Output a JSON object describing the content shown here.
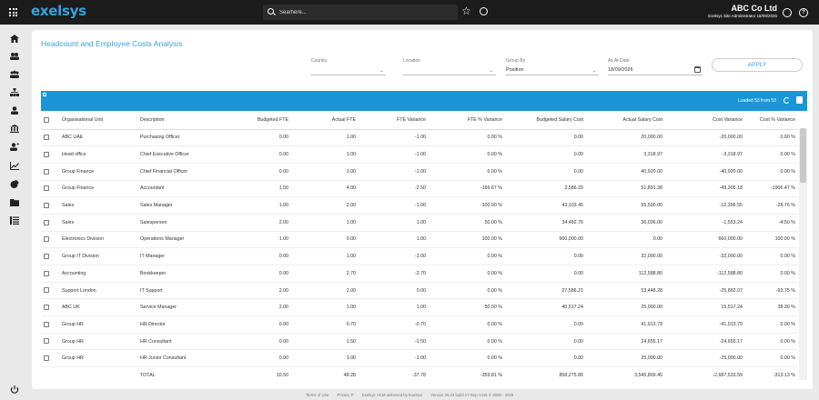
{
  "app": {
    "logo_text": "exelsys",
    "search_placeholder": "Searhere...",
    "company_name": "ABC Co Ltd",
    "user_role": "Exelsys Site Administrator 18/09/2026"
  },
  "page": {
    "title": "Headcount and Employee Costs Analysis"
  },
  "filters": {
    "country_label": "Country",
    "country_value": "",
    "location_label": "Location",
    "location_value": "",
    "group_by_label": "Group By",
    "group_by_value": "Position",
    "as_at_label": "As At Date",
    "as_at_value": "18/09/2026",
    "apply_label": "APPLY"
  },
  "grid": {
    "loaded_text": "Loaded 53 from 53",
    "columns": [
      "Organisational Unit",
      "Description",
      "Budgeted FTE",
      "Actual FTE",
      "FTE Variance",
      "FTE % Variance",
      "Budgeted Salary Cost",
      "Actual Salary Cost",
      "Cost Variance",
      "Cost % Variance"
    ],
    "rows": [
      [
        "ABC UAE",
        "Purchasing Officer",
        "0.00",
        "1.00",
        "-1.00",
        "0.00 %",
        "0.00",
        "20,000.00",
        "-20,000.00",
        "0.00 %"
      ],
      [
        "Head office",
        "Chief Executive Officer",
        "0.00",
        "1.00",
        "-1.00",
        "0.00 %",
        "0.00",
        "3,318.97",
        "-3,318.97",
        "0.00 %"
      ],
      [
        "Group Finance",
        "Chief Financial Officer",
        "0.00",
        "1.00",
        "-1.00",
        "0.00 %",
        "0.00",
        "40,920.00",
        "-40,920.00",
        "0.00 %"
      ],
      [
        "Group Finance",
        "Accountant",
        "1.50",
        "4.00",
        "-2.50",
        "-166.67 %",
        "2,586.20",
        "51,891.38",
        "-49,305.18",
        "-1906.47 %"
      ],
      [
        "Sales",
        "Sales Manager",
        "1.00",
        "2.00",
        "-1.00",
        "-100.00 %",
        "43,103.45",
        "55,500.00",
        "-12,396.55",
        "-28.76 %"
      ],
      [
        "Sales",
        "Salesperson",
        "2.00",
        "1.00",
        "1.00",
        "50.00 %",
        "34,482.76",
        "36,036.00",
        "-1,553.24",
        "-4.50 %"
      ],
      [
        "Electronics Division",
        "Operations Manager",
        "1.00",
        "0.00",
        "1.00",
        "100.00 %",
        "660,000.00",
        "0.00",
        "660,000.00",
        "100.00 %"
      ],
      [
        "Group IT Division",
        "IT Manager",
        "0.00",
        "1.00",
        "-1.00",
        "0.00 %",
        "0.00",
        "32,000.00",
        "-32,000.00",
        "0.00 %"
      ],
      [
        "Accounting",
        "Bookkeeper",
        "0.00",
        "2.70",
        "-2.70",
        "0.00 %",
        "0.00",
        "112,588.80",
        "-112,588.80",
        "0.00 %"
      ],
      [
        "Support London",
        "IT Support",
        "2.00",
        "2.00",
        "0.00",
        "0.00 %",
        "27,586.21",
        "53,448.28",
        "-25,862.07",
        "-93.75 %"
      ],
      [
        "ABC UK",
        "Service Manager",
        "2.00",
        "1.00",
        "1.00",
        "50.00 %",
        "40,517.24",
        "25,000.00",
        "15,517.24",
        "38.30 %"
      ],
      [
        "Group HR",
        "HR Director",
        "0.00",
        "0.70",
        "-0.70",
        "0.00 %",
        "0.00",
        "41,913.79",
        "-41,913.79",
        "0.00 %"
      ],
      [
        "Group HR",
        "HR Consultant",
        "0.00",
        "1.50",
        "-1.50",
        "0.00 %",
        "0.00",
        "24,655.17",
        "-24,655.17",
        "0.00 %"
      ],
      [
        "Group HR",
        "HR Junior Consultant",
        "0.00",
        "1.00",
        "-1.00",
        "0.00 %",
        "0.00",
        "25,000.00",
        "-25,000.00",
        "0.00 %"
      ]
    ],
    "total": [
      "TOTAL",
      "10.50",
      "48.28",
      "-37.78",
      "-359.81 %",
      "858,275.86",
      "3,545,809.45",
      "-2,687,533.59",
      "-313.13 %"
    ]
  },
  "footer": {
    "terms": "Terms of Use",
    "privacy": "Privacy P",
    "delivered": "Exelsys HCM delivered by Exelsys",
    "version": "Version 26.24 build 17-Sep-1415 © 2009 - 2026"
  },
  "colors": {
    "accent": "#1a95d8",
    "topbar": "#1c1c1c"
  },
  "icons": [
    "grid-menu-icon",
    "search-icon",
    "star-icon",
    "chat-icon",
    "user-icon",
    "help-icon",
    "home-icon",
    "people-icon",
    "group-icon",
    "org-chart-icon",
    "person-icon",
    "bank-icon",
    "person-add-icon",
    "chart-icon",
    "pie-icon",
    "folder-icon",
    "list-icon",
    "power-icon",
    "refresh-icon",
    "export-icon",
    "calendar-icon"
  ]
}
